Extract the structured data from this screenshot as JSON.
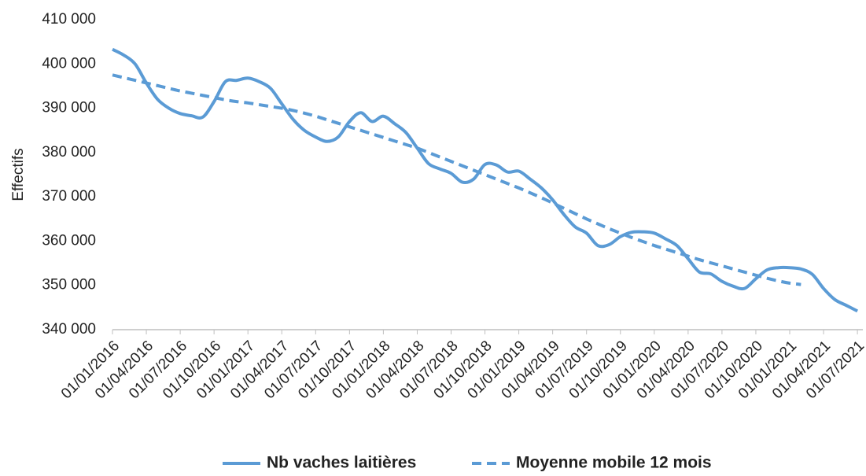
{
  "chart_data": {
    "type": "line",
    "y_label": "Effectifs",
    "categories": [
      "01/01/2016",
      null,
      null,
      "01/04/2016",
      null,
      null,
      "01/07/2016",
      null,
      null,
      "01/10/2016",
      null,
      null,
      "01/01/2017",
      null,
      null,
      "01/04/2017",
      null,
      null,
      "01/07/2017",
      null,
      null,
      "01/10/2017",
      null,
      null,
      "01/01/2018",
      null,
      null,
      "01/04/2018",
      null,
      null,
      "01/07/2018",
      null,
      null,
      "01/10/2018",
      null,
      null,
      "01/01/2019",
      null,
      null,
      "01/04/2019",
      null,
      null,
      "01/07/2019",
      null,
      null,
      "01/10/2019",
      null,
      null,
      "01/01/2020",
      null,
      null,
      "01/04/2020",
      null,
      null,
      "01/07/2020",
      null,
      null,
      "01/10/2020",
      null,
      null,
      "01/01/2021",
      null,
      null,
      "01/04/2021",
      null,
      null,
      "01/07/2021"
    ],
    "series": [
      {
        "name": "Nb vaches laitières",
        "color": "#5b9bd5",
        "dash": false,
        "values": [
          403300,
          402000,
          400000,
          395700,
          392000,
          390000,
          388800,
          388300,
          388000,
          391500,
          396000,
          396300,
          396800,
          396000,
          394500,
          391000,
          387500,
          385000,
          383500,
          382500,
          383500,
          387000,
          389000,
          387000,
          388200,
          386500,
          384500,
          381000,
          377500,
          376300,
          375300,
          373300,
          374000,
          377300,
          377200,
          375600,
          375800,
          374000,
          372000,
          369300,
          366000,
          363200,
          361800,
          359000,
          359200,
          361000,
          362000,
          362100,
          361800,
          360500,
          359000,
          356000,
          353000,
          352600,
          350900,
          349800,
          349300,
          351500,
          353500,
          354000,
          354000,
          353700,
          352500,
          349300,
          346800,
          345500,
          344200
        ]
      },
      {
        "name": "Moyenne mobile 12 mois",
        "color": "#5b9bd5",
        "dash": true,
        "values": [
          397500,
          396900,
          396300,
          395700,
          395100,
          394500,
          393900,
          393400,
          392900,
          392400,
          391900,
          391500,
          391200,
          390800,
          390400,
          390000,
          389500,
          388900,
          388200,
          387400,
          386600,
          385800,
          385000,
          384200,
          383400,
          382600,
          381800,
          381000,
          380000,
          379000,
          378000,
          377000,
          376000,
          375000,
          374000,
          373000,
          372000,
          370900,
          369800,
          368600,
          367400,
          366200,
          365000,
          363900,
          362800,
          361800,
          360800,
          359900,
          359000,
          358200,
          357400,
          356600,
          355800,
          355100,
          354400,
          353700,
          353000,
          352300,
          351600,
          351000,
          350500,
          350200,
          null,
          null,
          null,
          null,
          null
        ]
      }
    ],
    "ylim": [
      340000,
      410000
    ],
    "yticks": [
      {
        "value": 340000,
        "label": "340 000"
      },
      {
        "value": 350000,
        "label": "350 000"
      },
      {
        "value": 360000,
        "label": "360 000"
      },
      {
        "value": 370000,
        "label": "370 000"
      },
      {
        "value": 380000,
        "label": "380 000"
      },
      {
        "value": 390000,
        "label": "390 000"
      },
      {
        "value": 400000,
        "label": "400 000"
      },
      {
        "value": 410000,
        "label": "410 000"
      }
    ],
    "grid": false
  }
}
